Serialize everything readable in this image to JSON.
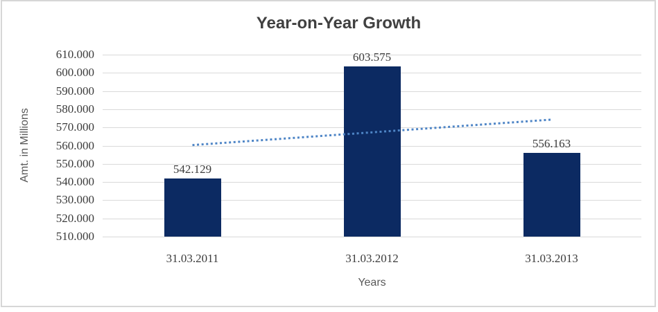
{
  "chart": {
    "title": "Year-on-Year Growth",
    "y_axis_title": "Amt. in Millions",
    "x_axis_title": "Years",
    "background_color": "#ffffff",
    "frame_border_color": "#d6d6d6",
    "gridline_color": "#d9d9d9",
    "title_color": "#404040",
    "axis_title_color": "#595959",
    "tick_label_color": "#3b3b3b"
  },
  "chart_data": {
    "type": "bar",
    "title": "Year-on-Year Growth",
    "xlabel": "Years",
    "ylabel": "Amt. in Millions",
    "categories": [
      "31.03.2011",
      "31.03.2012",
      "31.03.2013"
    ],
    "values": [
      542.129,
      603.575,
      556.163
    ],
    "value_labels": [
      "542.129",
      "603.575",
      "556.163"
    ],
    "ylim": [
      510,
      610
    ],
    "grid": true,
    "legend": "none",
    "bar_color": "#0c2a62",
    "yticks": [
      {
        "value": 610,
        "label": "610.000"
      },
      {
        "value": 600,
        "label": "600.000"
      },
      {
        "value": 590,
        "label": "590.000"
      },
      {
        "value": 580,
        "label": "580.000"
      },
      {
        "value": 570,
        "label": "570.000"
      },
      {
        "value": 560,
        "label": "560.000"
      },
      {
        "value": 550,
        "label": "550.000"
      },
      {
        "value": 540,
        "label": "540.000"
      },
      {
        "value": 530,
        "label": "530.000"
      },
      {
        "value": 520,
        "label": "520.000"
      },
      {
        "value": 510,
        "label": "510.000"
      }
    ],
    "trendline": {
      "type": "linear",
      "style": "dotted",
      "color": "#4e85c6",
      "start_value": 560.3,
      "end_value": 574.3
    }
  }
}
